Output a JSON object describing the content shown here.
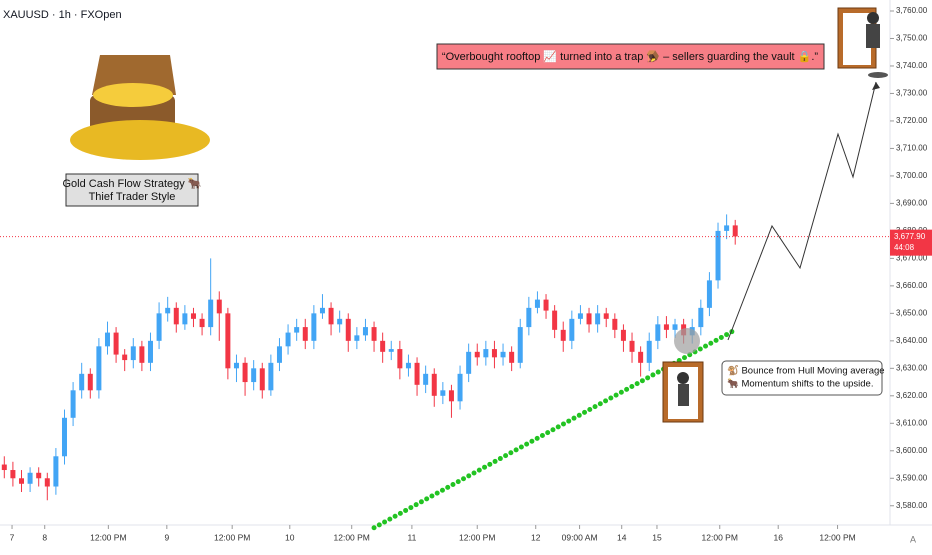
{
  "chart_data": {
    "type": "candlestick",
    "title": "XAUUSD · 1h · FXOpen",
    "banner": "“Overbought rooftop 📈 turned into a trap 🪤 – sellers guarding the vault 🔒.”",
    "strategy_title": "Gold Cash Flow Strategy 🐂",
    "strategy_subtitle": "Thief Trader Style",
    "note_lines": [
      "🐒 Bounce from Hull Moving average",
      "🐂 Momentum shifts to the upside."
    ],
    "up_color": "#42a5f5",
    "down_color": "#f23645",
    "open": [
      3595,
      3593,
      3590,
      3588,
      3592,
      3590,
      3587,
      3598,
      3612,
      3622,
      3628,
      3622,
      3638,
      3643,
      3635,
      3633,
      3638,
      3632,
      3640,
      3650,
      3652,
      3646,
      3650,
      3648,
      3645,
      3655,
      3650,
      3630,
      3632,
      3625,
      3630,
      3622,
      3632,
      3638,
      3643,
      3645,
      3640,
      3650,
      3652,
      3646,
      3648,
      3640,
      3642,
      3645,
      3640,
      3636,
      3637,
      3630,
      3632,
      3624,
      3628,
      3620,
      3622,
      3618,
      3628,
      3636,
      3634,
      3637,
      3634,
      3636,
      3632,
      3645,
      3652,
      3655,
      3651,
      3644,
      3640,
      3648,
      3650,
      3646,
      3650,
      3648,
      3644,
      3640,
      3636,
      3632,
      3640,
      3646,
      3644,
      3646,
      3642,
      3645,
      3652,
      3662,
      3680,
      3682
    ],
    "high": [
      3598,
      3596,
      3593,
      3594,
      3594,
      3592,
      3601,
      3615,
      3625,
      3632,
      3630,
      3641,
      3647,
      3645,
      3637,
      3641,
      3640,
      3643,
      3654,
      3656,
      3654,
      3653,
      3652,
      3650,
      3670,
      3658,
      3652,
      3635,
      3634,
      3633,
      3632,
      3635,
      3641,
      3646,
      3648,
      3648,
      3653,
      3657,
      3654,
      3651,
      3650,
      3645,
      3648,
      3647,
      3643,
      3640,
      3640,
      3635,
      3634,
      3631,
      3630,
      3625,
      3624,
      3631,
      3639,
      3639,
      3640,
      3640,
      3639,
      3638,
      3648,
      3656,
      3658,
      3657,
      3653,
      3647,
      3651,
      3653,
      3652,
      3653,
      3652,
      3650,
      3646,
      3643,
      3638,
      3643,
      3649,
      3649,
      3648,
      3648,
      3648,
      3655,
      3665,
      3683,
      3686,
      3684
    ],
    "low": [
      3590,
      3587,
      3585,
      3585,
      3587,
      3582,
      3584,
      3595,
      3609,
      3619,
      3619,
      3619,
      3635,
      3632,
      3629,
      3630,
      3629,
      3629,
      3637,
      3647,
      3643,
      3644,
      3645,
      3642,
      3642,
      3640,
      3626,
      3625,
      3620,
      3622,
      3619,
      3620,
      3629,
      3635,
      3640,
      3637,
      3637,
      3648,
      3642,
      3643,
      3636,
      3637,
      3640,
      3636,
      3632,
      3633,
      3626,
      3627,
      3620,
      3621,
      3616,
      3617,
      3612,
      3615,
      3625,
      3631,
      3631,
      3630,
      3631,
      3629,
      3630,
      3642,
      3650,
      3648,
      3641,
      3636,
      3637,
      3646,
      3643,
      3643,
      3645,
      3641,
      3636,
      3632,
      3627,
      3629,
      3637,
      3641,
      3641,
      3639,
      3639,
      3642,
      3649,
      3659,
      3677,
      3675
    ],
    "close": [
      3593,
      3590,
      3588,
      3592,
      3590,
      3587,
      3598,
      3612,
      3622,
      3628,
      3622,
      3638,
      3643,
      3635,
      3633,
      3638,
      3632,
      3640,
      3650,
      3652,
      3646,
      3650,
      3648,
      3645,
      3655,
      3650,
      3630,
      3632,
      3625,
      3630,
      3622,
      3632,
      3638,
      3643,
      3645,
      3640,
      3650,
      3652,
      3646,
      3648,
      3640,
      3642,
      3645,
      3640,
      3636,
      3637,
      3630,
      3632,
      3624,
      3628,
      3620,
      3622,
      3618,
      3628,
      3636,
      3634,
      3637,
      3634,
      3636,
      3632,
      3645,
      3652,
      3655,
      3651,
      3644,
      3640,
      3648,
      3650,
      3646,
      3650,
      3648,
      3644,
      3640,
      3636,
      3632,
      3640,
      3646,
      3644,
      3646,
      3642,
      3645,
      3652,
      3662,
      3680,
      3682,
      3678
    ],
    "hull": {
      "color": "#22c322",
      "x": [
        43.5,
        85.5
      ],
      "values": [
        3572,
        3644
      ]
    },
    "last_price": {
      "value": 3677.9,
      "label": "3,677.90"
    },
    "countdown": "44:08",
    "xlim": [
      0,
      103.5
    ],
    "ylim": [
      3573,
      3764
    ],
    "xticks": [
      {
        "value": 1.4,
        "label": "7"
      },
      {
        "value": 5.2,
        "label": "8"
      },
      {
        "value": 12.6,
        "label": "12:00 PM"
      },
      {
        "value": 19.4,
        "label": "9"
      },
      {
        "value": 27,
        "label": "12:00 PM"
      },
      {
        "value": 33.7,
        "label": "10"
      },
      {
        "value": 40.9,
        "label": "12:00 PM"
      },
      {
        "value": 47.9,
        "label": "11"
      },
      {
        "value": 55.5,
        "label": "12:00 PM"
      },
      {
        "value": 62.3,
        "label": "12"
      },
      {
        "value": 67.4,
        "label": "09:00 AM"
      },
      {
        "value": 72.3,
        "label": "14"
      },
      {
        "value": 76.4,
        "label": "15"
      },
      {
        "value": 83.7,
        "label": "12:00 PM"
      },
      {
        "value": 90.5,
        "label": "16"
      },
      {
        "value": 97.4,
        "label": "12:00 PM"
      }
    ],
    "yticks": [
      {
        "value": 3580,
        "label": "3,580.00"
      },
      {
        "value": 3590,
        "label": "3,590.00"
      },
      {
        "value": 3600,
        "label": "3,600.00"
      },
      {
        "value": 3610,
        "label": "3,610.00"
      },
      {
        "value": 3620,
        "label": "3,620.00"
      },
      {
        "value": 3630,
        "label": "3,630.00"
      },
      {
        "value": 3640,
        "label": "3,640.00"
      },
      {
        "value": 3650,
        "label": "3,650.00"
      },
      {
        "value": 3660,
        "label": "3,660.00"
      },
      {
        "value": 3670,
        "label": "3,670.00"
      },
      {
        "value": 3680,
        "label": "3,680.00"
      },
      {
        "value": 3690,
        "label": "3,690.00"
      },
      {
        "value": 3700,
        "label": "3,700.00"
      },
      {
        "value": 3710,
        "label": "3,710.00"
      },
      {
        "value": 3720,
        "label": "3,720.00"
      },
      {
        "value": 3730,
        "label": "3,730.00"
      },
      {
        "value": 3740,
        "label": "3,740.00"
      },
      {
        "value": 3750,
        "label": "3,750.00"
      },
      {
        "value": 3760,
        "label": "3,760.00"
      }
    ]
  }
}
